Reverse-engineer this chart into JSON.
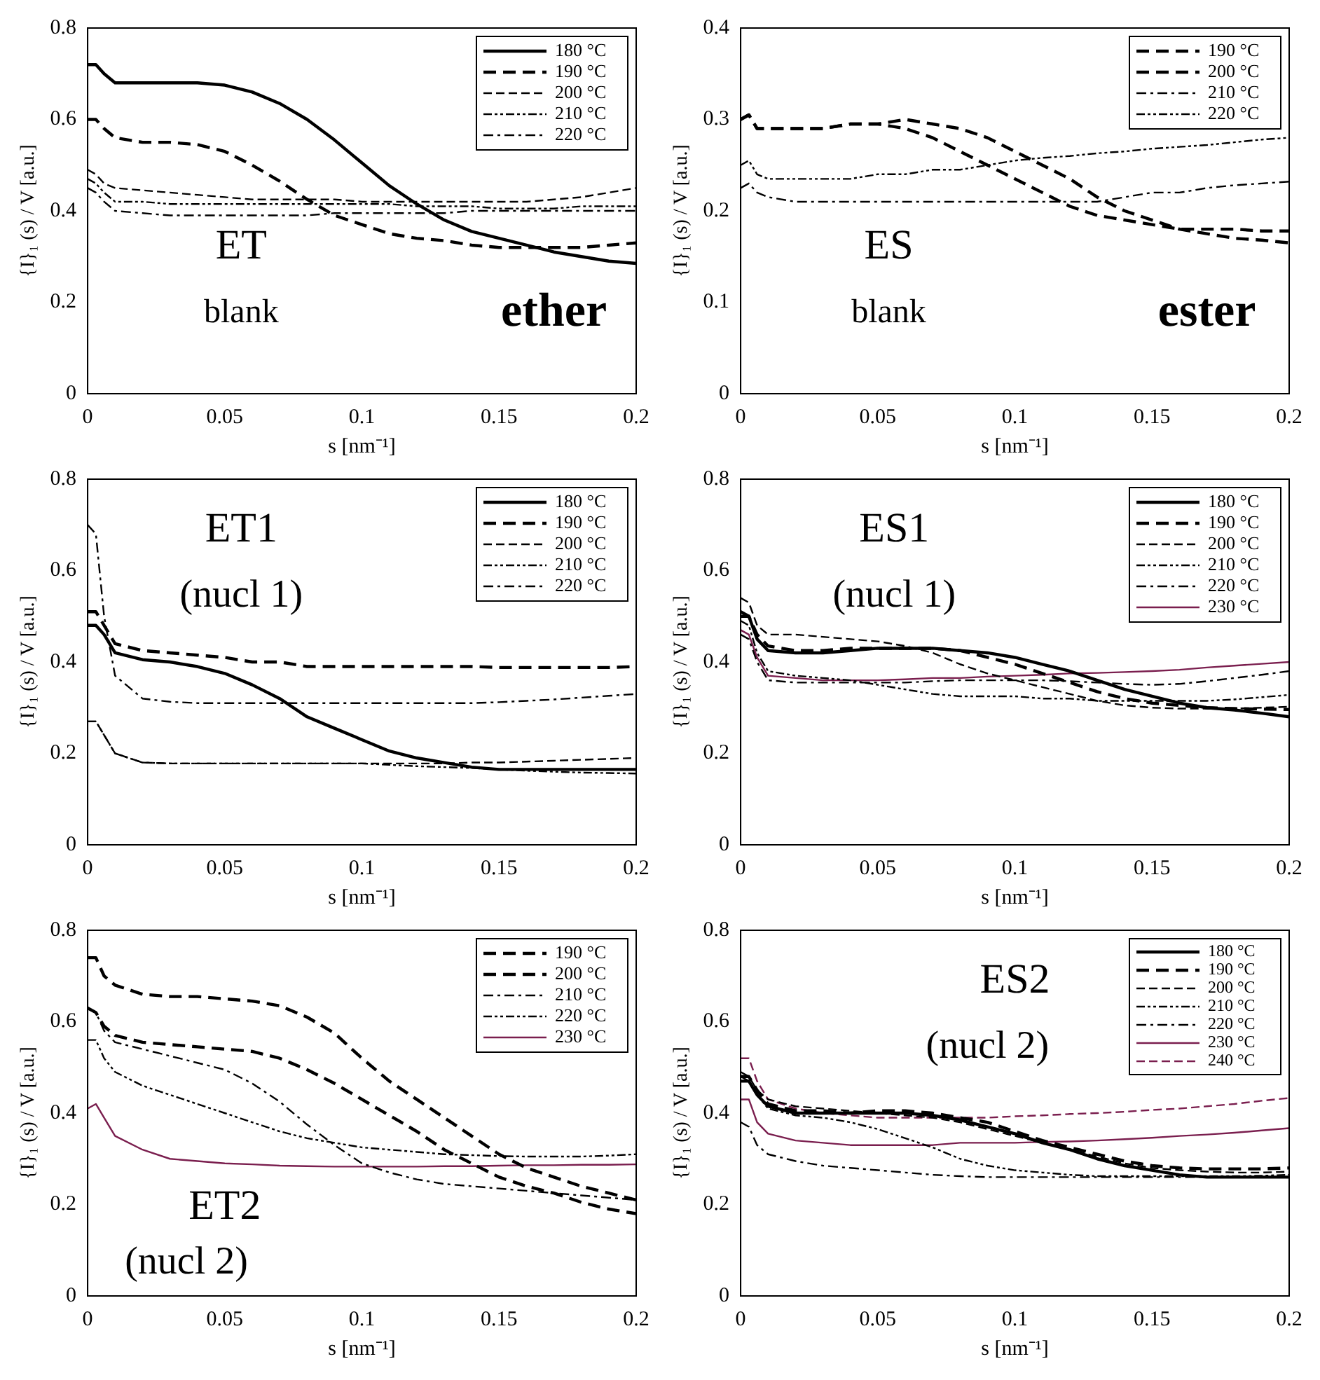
{
  "chart_data": [
    {
      "type": "line",
      "xlabel": "s [nm⁻¹]",
      "ylabel": "{I}₁ (s) / V [a.u.]",
      "annotations": [
        "ET",
        "blank",
        "ether"
      ],
      "xlim": [
        0,
        0.2
      ],
      "xticks": [
        0,
        0.05,
        0.1,
        0.15,
        0.2
      ],
      "ylim": [
        0,
        0.8
      ],
      "yticks": [
        0,
        0.2,
        0.4,
        0.6,
        0.8
      ],
      "legend": "top right",
      "x": [
        0,
        0.003,
        0.006,
        0.01,
        0.02,
        0.03,
        0.04,
        0.05,
        0.06,
        0.07,
        0.08,
        0.09,
        0.1,
        0.11,
        0.12,
        0.13,
        0.14,
        0.15,
        0.16,
        0.17,
        0.18,
        0.19,
        0.2
      ],
      "series": [
        {
          "name": "180 °C",
          "color": "#000000",
          "line_style": "solid",
          "values": [
            0.72,
            0.72,
            0.7,
            0.68,
            0.68,
            0.68,
            0.68,
            0.675,
            0.66,
            0.635,
            0.6,
            0.555,
            0.505,
            0.455,
            0.415,
            0.38,
            0.355,
            0.34,
            0.325,
            0.31,
            0.3,
            0.29,
            0.285
          ]
        },
        {
          "name": "190 °C",
          "color": "#000000",
          "line_style": "dashed",
          "values": [
            0.6,
            0.6,
            0.58,
            0.56,
            0.55,
            0.55,
            0.545,
            0.53,
            0.5,
            0.465,
            0.425,
            0.39,
            0.37,
            0.35,
            0.34,
            0.335,
            0.325,
            0.32,
            0.32,
            0.32,
            0.32,
            0.325,
            0.33
          ]
        },
        {
          "name": "200 °C",
          "color": "#000000",
          "line_style": "dashed",
          "values": [
            0.49,
            0.48,
            0.46,
            0.45,
            0.445,
            0.44,
            0.435,
            0.43,
            0.425,
            0.425,
            0.425,
            0.425,
            0.42,
            0.42,
            0.42,
            0.42,
            0.42,
            0.42,
            0.42,
            0.425,
            0.43,
            0.44,
            0.45
          ]
        },
        {
          "name": "210 °C",
          "color": "#000000",
          "line_style": "dotted",
          "values": [
            0.47,
            0.46,
            0.44,
            0.42,
            0.42,
            0.415,
            0.415,
            0.415,
            0.415,
            0.415,
            0.415,
            0.415,
            0.415,
            0.415,
            0.41,
            0.41,
            0.41,
            0.405,
            0.405,
            0.405,
            0.41,
            0.41,
            0.41
          ]
        },
        {
          "name": "220 °C",
          "color": "#000000",
          "line_style": "dotted",
          "values": [
            0.45,
            0.44,
            0.42,
            0.4,
            0.395,
            0.39,
            0.39,
            0.39,
            0.39,
            0.39,
            0.39,
            0.395,
            0.395,
            0.395,
            0.395,
            0.395,
            0.4,
            0.4,
            0.4,
            0.4,
            0.4,
            0.4,
            0.4
          ]
        }
      ]
    },
    {
      "type": "line",
      "xlabel": "s [nm⁻¹]",
      "ylabel": "{I}₁ (s) / V [a.u.]",
      "annotations": [
        "ES",
        "blank",
        "ester"
      ],
      "xlim": [
        0,
        0.2
      ],
      "xticks": [
        0,
        0.05,
        0.1,
        0.15,
        0.2
      ],
      "ylim": [
        0,
        0.4
      ],
      "yticks": [
        0,
        0.1,
        0.2,
        0.3,
        0.4
      ],
      "legend": "top right",
      "x": [
        0,
        0.003,
        0.006,
        0.01,
        0.02,
        0.03,
        0.04,
        0.05,
        0.06,
        0.07,
        0.08,
        0.09,
        0.1,
        0.11,
        0.12,
        0.13,
        0.14,
        0.15,
        0.16,
        0.17,
        0.18,
        0.19,
        0.2
      ],
      "series": [
        {
          "name": "190 °C",
          "color": "#000000",
          "line_style": "dashed",
          "values": [
            0.3,
            0.305,
            0.29,
            0.29,
            0.29,
            0.29,
            0.295,
            0.295,
            0.3,
            0.295,
            0.29,
            0.28,
            0.265,
            0.25,
            0.235,
            0.215,
            0.2,
            0.19,
            0.18,
            0.175,
            0.17,
            0.168,
            0.165
          ]
        },
        {
          "name": "200 °C",
          "color": "#000000",
          "line_style": "dashed",
          "values": [
            0.3,
            0.305,
            0.29,
            0.29,
            0.29,
            0.29,
            0.295,
            0.295,
            0.29,
            0.28,
            0.265,
            0.25,
            0.235,
            0.22,
            0.205,
            0.195,
            0.19,
            0.185,
            0.18,
            0.18,
            0.18,
            0.178,
            0.178
          ]
        },
        {
          "name": "210 °C",
          "color": "#000000",
          "line_style": "dotted",
          "values": [
            0.225,
            0.23,
            0.22,
            0.215,
            0.21,
            0.21,
            0.21,
            0.21,
            0.21,
            0.21,
            0.21,
            0.21,
            0.21,
            0.21,
            0.21,
            0.21,
            0.215,
            0.22,
            0.22,
            0.225,
            0.228,
            0.23,
            0.232
          ]
        },
        {
          "name": "220 °C",
          "color": "#000000",
          "line_style": "dotted",
          "values": [
            0.25,
            0.255,
            0.24,
            0.235,
            0.235,
            0.235,
            0.235,
            0.24,
            0.24,
            0.245,
            0.245,
            0.25,
            0.255,
            0.258,
            0.26,
            0.263,
            0.265,
            0.268,
            0.27,
            0.272,
            0.275,
            0.278,
            0.28
          ]
        }
      ]
    },
    {
      "type": "line",
      "xlabel": "s [nm⁻¹]",
      "ylabel": "{I}₁ (s) / V [a.u.]",
      "annotations": [
        "ET1",
        "(nucl 1)"
      ],
      "xlim": [
        0,
        0.2
      ],
      "xticks": [
        0,
        0.05,
        0.1,
        0.15,
        0.2
      ],
      "ylim": [
        0,
        0.8
      ],
      "yticks": [
        0,
        0.2,
        0.4,
        0.6,
        0.8
      ],
      "legend": "top right",
      "x": [
        0,
        0.003,
        0.006,
        0.01,
        0.02,
        0.03,
        0.04,
        0.05,
        0.06,
        0.07,
        0.08,
        0.09,
        0.1,
        0.11,
        0.12,
        0.13,
        0.14,
        0.15,
        0.16,
        0.17,
        0.18,
        0.19,
        0.2
      ],
      "series": [
        {
          "name": "180 °C",
          "color": "#000000",
          "line_style": "solid",
          "values": [
            0.48,
            0.48,
            0.46,
            0.42,
            0.405,
            0.4,
            0.39,
            0.375,
            0.35,
            0.32,
            0.28,
            0.255,
            0.23,
            0.205,
            0.19,
            0.18,
            0.17,
            0.165,
            0.165,
            0.165,
            0.165,
            0.165,
            0.165
          ]
        },
        {
          "name": "190 °C",
          "color": "#000000",
          "line_style": "dashed",
          "values": [
            0.51,
            0.51,
            0.48,
            0.44,
            0.425,
            0.42,
            0.415,
            0.41,
            0.4,
            0.4,
            0.39,
            0.39,
            0.39,
            0.39,
            0.39,
            0.39,
            0.39,
            0.388,
            0.388,
            0.388,
            0.388,
            0.388,
            0.39
          ]
        },
        {
          "name": "200 °C",
          "color": "#000000",
          "line_style": "dashed",
          "values": [
            0.27,
            0.27,
            0.24,
            0.2,
            0.18,
            0.178,
            0.178,
            0.178,
            0.178,
            0.178,
            0.178,
            0.178,
            0.178,
            0.178,
            0.178,
            0.178,
            0.18,
            0.18,
            0.182,
            0.184,
            0.186,
            0.188,
            0.19
          ]
        },
        {
          "name": "210 °C",
          "color": "#000000",
          "line_style": "dotted",
          "values": [
            0.27,
            0.27,
            0.24,
            0.2,
            0.18,
            0.178,
            0.178,
            0.178,
            0.178,
            0.178,
            0.178,
            0.178,
            0.178,
            0.175,
            0.172,
            0.17,
            0.168,
            0.165,
            0.162,
            0.16,
            0.158,
            0.157,
            0.156
          ]
        },
        {
          "name": "220 °C",
          "color": "#000000",
          "line_style": "dotted",
          "values": [
            0.7,
            0.68,
            0.5,
            0.37,
            0.32,
            0.313,
            0.31,
            0.31,
            0.31,
            0.31,
            0.31,
            0.31,
            0.31,
            0.31,
            0.31,
            0.31,
            0.31,
            0.312,
            0.315,
            0.318,
            0.322,
            0.326,
            0.33
          ]
        }
      ]
    },
    {
      "type": "line",
      "xlabel": "s [nm⁻¹]",
      "ylabel": "{I}₁ (s) / V [a.u.]",
      "annotations": [
        "ES1",
        "(nucl 1)"
      ],
      "xlim": [
        0,
        0.2
      ],
      "xticks": [
        0,
        0.05,
        0.1,
        0.15,
        0.2
      ],
      "ylim": [
        0,
        0.8
      ],
      "yticks": [
        0,
        0.2,
        0.4,
        0.6,
        0.8
      ],
      "legend": "top right",
      "x": [
        0,
        0.003,
        0.006,
        0.01,
        0.02,
        0.03,
        0.04,
        0.05,
        0.06,
        0.07,
        0.08,
        0.09,
        0.1,
        0.11,
        0.12,
        0.13,
        0.14,
        0.15,
        0.16,
        0.17,
        0.18,
        0.19,
        0.2
      ],
      "series": [
        {
          "name": "180 °C",
          "color": "#000000",
          "line_style": "solid",
          "values": [
            0.5,
            0.5,
            0.45,
            0.425,
            0.42,
            0.42,
            0.425,
            0.43,
            0.43,
            0.43,
            0.425,
            0.42,
            0.41,
            0.395,
            0.38,
            0.36,
            0.34,
            0.325,
            0.31,
            0.3,
            0.295,
            0.288,
            0.28
          ]
        },
        {
          "name": "190 °C",
          "color": "#000000",
          "line_style": "dashed",
          "values": [
            0.51,
            0.5,
            0.46,
            0.435,
            0.425,
            0.425,
            0.43,
            0.43,
            0.43,
            0.43,
            0.425,
            0.41,
            0.395,
            0.375,
            0.355,
            0.335,
            0.32,
            0.31,
            0.305,
            0.3,
            0.298,
            0.297,
            0.296
          ]
        },
        {
          "name": "200 °C",
          "color": "#000000",
          "line_style": "dashed",
          "values": [
            0.54,
            0.53,
            0.48,
            0.46,
            0.46,
            0.455,
            0.45,
            0.445,
            0.435,
            0.42,
            0.395,
            0.375,
            0.36,
            0.345,
            0.33,
            0.315,
            0.305,
            0.3,
            0.298,
            0.298,
            0.298,
            0.3,
            0.302
          ]
        },
        {
          "name": "210 °C",
          "color": "#000000",
          "line_style": "dotted",
          "values": [
            0.49,
            0.48,
            0.42,
            0.38,
            0.37,
            0.365,
            0.36,
            0.35,
            0.34,
            0.33,
            0.325,
            0.325,
            0.325,
            0.32,
            0.32,
            0.315,
            0.315,
            0.315,
            0.315,
            0.315,
            0.318,
            0.323,
            0.328
          ]
        },
        {
          "name": "220 °C",
          "color": "#000000",
          "line_style": "dotted",
          "values": [
            0.46,
            0.45,
            0.4,
            0.36,
            0.355,
            0.355,
            0.355,
            0.355,
            0.355,
            0.358,
            0.36,
            0.36,
            0.36,
            0.36,
            0.358,
            0.355,
            0.352,
            0.35,
            0.352,
            0.358,
            0.365,
            0.372,
            0.38
          ]
        },
        {
          "name": "230 °C",
          "color": "#7a1e4e",
          "line_style": "solid",
          "values": [
            0.47,
            0.46,
            0.41,
            0.37,
            0.365,
            0.36,
            0.36,
            0.36,
            0.362,
            0.365,
            0.365,
            0.368,
            0.37,
            0.372,
            0.375,
            0.376,
            0.378,
            0.38,
            0.383,
            0.388,
            0.392,
            0.396,
            0.4
          ]
        }
      ]
    },
    {
      "type": "line",
      "xlabel": "s [nm⁻¹]",
      "ylabel": "{I}₁ (s) / V [a.u.]",
      "annotations": [
        "ET2",
        "(nucl 2)"
      ],
      "xlim": [
        0,
        0.2
      ],
      "xticks": [
        0,
        0.05,
        0.1,
        0.15,
        0.2
      ],
      "ylim": [
        0,
        0.8
      ],
      "yticks": [
        0,
        0.2,
        0.4,
        0.6,
        0.8
      ],
      "legend": "top right",
      "x": [
        0,
        0.003,
        0.006,
        0.01,
        0.02,
        0.03,
        0.04,
        0.05,
        0.06,
        0.07,
        0.08,
        0.09,
        0.1,
        0.11,
        0.12,
        0.13,
        0.14,
        0.15,
        0.16,
        0.17,
        0.18,
        0.19,
        0.2
      ],
      "series": [
        {
          "name": "190 °C",
          "color": "#000000",
          "line_style": "dashed",
          "values": [
            0.74,
            0.74,
            0.7,
            0.68,
            0.66,
            0.655,
            0.655,
            0.65,
            0.645,
            0.635,
            0.61,
            0.575,
            0.52,
            0.47,
            0.43,
            0.39,
            0.35,
            0.31,
            0.28,
            0.26,
            0.24,
            0.225,
            0.21
          ]
        },
        {
          "name": "200 °C",
          "color": "#000000",
          "line_style": "dashed",
          "values": [
            0.63,
            0.62,
            0.59,
            0.57,
            0.555,
            0.55,
            0.545,
            0.54,
            0.535,
            0.52,
            0.495,
            0.465,
            0.43,
            0.395,
            0.36,
            0.32,
            0.29,
            0.26,
            0.24,
            0.225,
            0.205,
            0.19,
            0.18
          ]
        },
        {
          "name": "210 °C",
          "color": "#000000",
          "line_style": "dotted",
          "values": [
            0.63,
            0.62,
            0.58,
            0.555,
            0.54,
            0.525,
            0.51,
            0.495,
            0.465,
            0.425,
            0.375,
            0.33,
            0.29,
            0.27,
            0.255,
            0.245,
            0.24,
            0.235,
            0.23,
            0.225,
            0.22,
            0.215,
            0.21
          ]
        },
        {
          "name": "220 °C",
          "color": "#000000",
          "line_style": "dotted",
          "values": [
            0.56,
            0.56,
            0.52,
            0.49,
            0.46,
            0.44,
            0.42,
            0.4,
            0.38,
            0.36,
            0.345,
            0.335,
            0.325,
            0.32,
            0.315,
            0.31,
            0.308,
            0.306,
            0.305,
            0.305,
            0.305,
            0.307,
            0.31
          ]
        },
        {
          "name": "230 °C",
          "color": "#7a1e4e",
          "line_style": "solid",
          "values": [
            0.41,
            0.42,
            0.39,
            0.35,
            0.32,
            0.3,
            0.295,
            0.29,
            0.288,
            0.285,
            0.284,
            0.283,
            0.283,
            0.283,
            0.283,
            0.284,
            0.284,
            0.285,
            0.286,
            0.286,
            0.287,
            0.287,
            0.288
          ]
        }
      ]
    },
    {
      "type": "line",
      "xlabel": "s [nm⁻¹]",
      "ylabel": "{I}₁ (s) / V [a.u.]",
      "annotations": [
        "ES2",
        "(nucl 2)"
      ],
      "xlim": [
        0,
        0.2
      ],
      "xticks": [
        0,
        0.05,
        0.1,
        0.15,
        0.2
      ],
      "ylim": [
        0,
        0.8
      ],
      "yticks": [
        0,
        0.2,
        0.4,
        0.6,
        0.8
      ],
      "legend": "top right",
      "x": [
        0,
        0.003,
        0.006,
        0.01,
        0.02,
        0.03,
        0.04,
        0.05,
        0.06,
        0.07,
        0.08,
        0.09,
        0.1,
        0.11,
        0.12,
        0.13,
        0.14,
        0.15,
        0.16,
        0.17,
        0.18,
        0.19,
        0.2
      ],
      "series": [
        {
          "name": "180 °C",
          "color": "#000000",
          "line_style": "solid",
          "values": [
            0.47,
            0.47,
            0.44,
            0.415,
            0.4,
            0.4,
            0.4,
            0.4,
            0.4,
            0.395,
            0.385,
            0.37,
            0.355,
            0.335,
            0.32,
            0.3,
            0.285,
            0.275,
            0.265,
            0.26,
            0.26,
            0.26,
            0.26
          ]
        },
        {
          "name": "190 °C",
          "color": "#000000",
          "line_style": "dashed",
          "values": [
            0.48,
            0.48,
            0.45,
            0.42,
            0.405,
            0.405,
            0.4,
            0.405,
            0.405,
            0.4,
            0.39,
            0.38,
            0.36,
            0.34,
            0.325,
            0.31,
            0.295,
            0.285,
            0.28,
            0.278,
            0.278,
            0.278,
            0.28
          ]
        },
        {
          "name": "200 °C",
          "color": "#000000",
          "line_style": "dashed",
          "values": [
            0.49,
            0.48,
            0.45,
            0.43,
            0.415,
            0.41,
            0.405,
            0.4,
            0.395,
            0.39,
            0.38,
            0.365,
            0.35,
            0.335,
            0.32,
            0.305,
            0.29,
            0.28,
            0.275,
            0.272,
            0.27,
            0.27,
            0.272
          ]
        },
        {
          "name": "210 °C",
          "color": "#000000",
          "line_style": "dotted",
          "values": [
            0.48,
            0.47,
            0.44,
            0.41,
            0.395,
            0.39,
            0.38,
            0.365,
            0.345,
            0.325,
            0.3,
            0.285,
            0.275,
            0.27,
            0.265,
            0.262,
            0.262,
            0.262,
            0.262,
            0.262,
            0.262,
            0.263,
            0.265
          ]
        },
        {
          "name": "220 °C",
          "color": "#000000",
          "line_style": "dotted",
          "values": [
            0.38,
            0.37,
            0.33,
            0.31,
            0.295,
            0.285,
            0.28,
            0.275,
            0.27,
            0.265,
            0.262,
            0.26,
            0.26,
            0.26,
            0.26,
            0.26,
            0.26,
            0.26,
            0.26,
            0.26,
            0.26,
            0.26,
            0.26
          ]
        },
        {
          "name": "230 °C",
          "color": "#7a1e4e",
          "line_style": "solid",
          "values": [
            0.43,
            0.43,
            0.38,
            0.355,
            0.34,
            0.335,
            0.33,
            0.33,
            0.33,
            0.33,
            0.335,
            0.335,
            0.335,
            0.337,
            0.338,
            0.34,
            0.343,
            0.346,
            0.35,
            0.353,
            0.357,
            0.362,
            0.367
          ]
        },
        {
          "name": "240 °C",
          "color": "#7a1e4e",
          "line_style": "dashed",
          "values": [
            0.52,
            0.52,
            0.47,
            0.43,
            0.41,
            0.4,
            0.395,
            0.39,
            0.39,
            0.39,
            0.39,
            0.39,
            0.393,
            0.395,
            0.398,
            0.4,
            0.403,
            0.407,
            0.41,
            0.415,
            0.42,
            0.427,
            0.433
          ]
        }
      ]
    }
  ]
}
